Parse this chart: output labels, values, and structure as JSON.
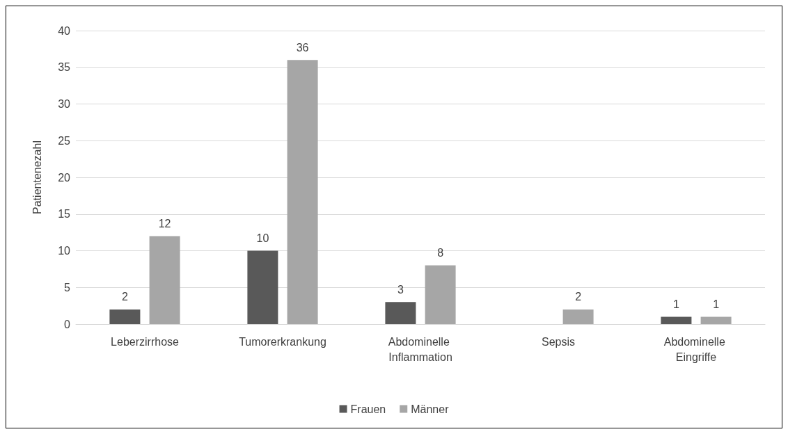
{
  "chart_data": {
    "type": "bar",
    "ylabel": "Patientenezahl",
    "categories": [
      "Leberzirrhose",
      "Tumorerkrankung",
      "Abdominelle Inflammation",
      "Sepsis",
      "Abdominelle Eingriffe"
    ],
    "series": [
      {
        "name": "Frauen",
        "color": "#595959",
        "values": [
          2,
          10,
          3,
          null,
          1
        ]
      },
      {
        "name": "Männer",
        "color": "#a6a6a6",
        "values": [
          12,
          36,
          8,
          2,
          1
        ]
      }
    ],
    "ylim": [
      0,
      40
    ],
    "yticks": [
      0,
      5,
      10,
      15,
      20,
      25,
      30,
      35,
      40
    ],
    "grid": "y",
    "legend": "bottom",
    "data_labels": true
  }
}
